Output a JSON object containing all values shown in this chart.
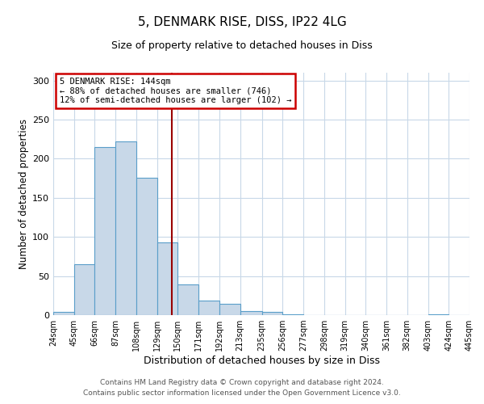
{
  "title": "5, DENMARK RISE, DISS, IP22 4LG",
  "subtitle": "Size of property relative to detached houses in Diss",
  "xlabel": "Distribution of detached houses by size in Diss",
  "ylabel": "Number of detached properties",
  "bin_edges": [
    24,
    45,
    66,
    87,
    108,
    129,
    150,
    171,
    192,
    213,
    235,
    256,
    277,
    298,
    319,
    340,
    361,
    382,
    403,
    424,
    445
  ],
  "bar_heights": [
    4,
    65,
    215,
    222,
    176,
    93,
    39,
    19,
    14,
    5,
    4,
    1,
    0,
    0,
    0,
    0,
    0,
    0,
    1,
    0
  ],
  "bar_color": "#c8d8e8",
  "bar_edge_color": "#5a9ec9",
  "property_size": 144,
  "vline_color": "#990000",
  "annotation_title": "5 DENMARK RISE: 144sqm",
  "annotation_line1": "← 88% of detached houses are smaller (746)",
  "annotation_line2": "12% of semi-detached houses are larger (102) →",
  "annotation_box_color": "#cc0000",
  "ylim": [
    0,
    310
  ],
  "yticks": [
    0,
    50,
    100,
    150,
    200,
    250,
    300
  ],
  "footnote1": "Contains HM Land Registry data © Crown copyright and database right 2024.",
  "footnote2": "Contains public sector information licensed under the Open Government Licence v3.0.",
  "background_color": "#ffffff",
  "grid_color": "#c8d8e8"
}
